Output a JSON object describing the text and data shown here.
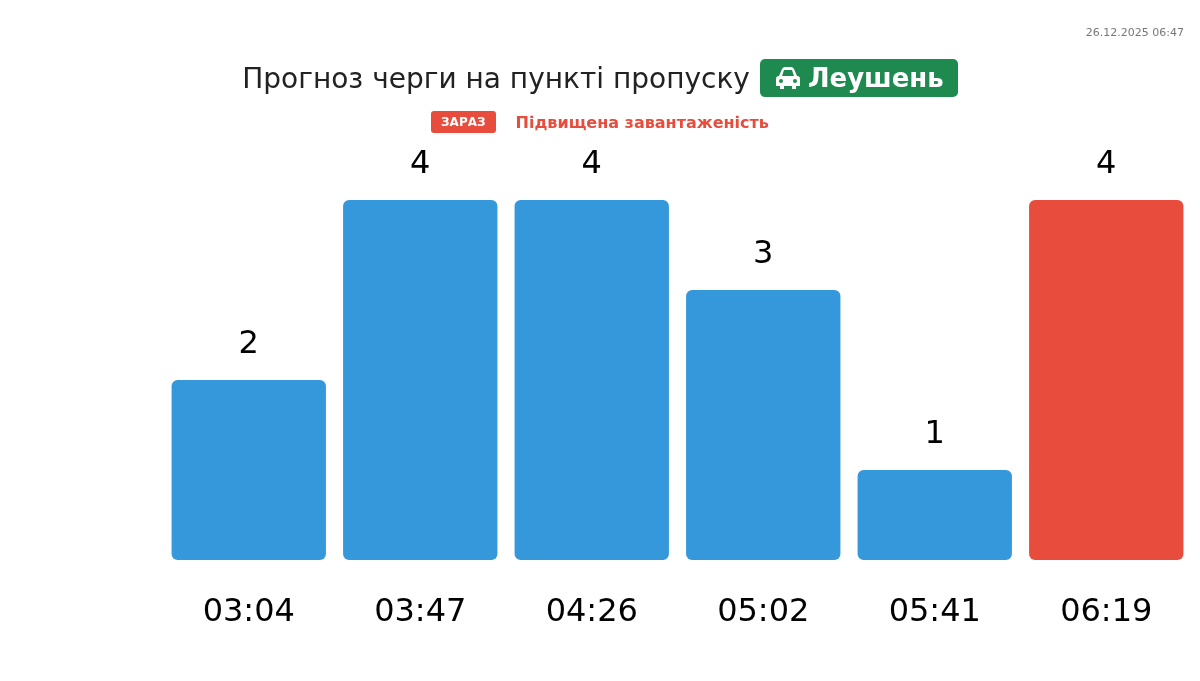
{
  "chart_data": {
    "type": "bar",
    "title": "Прогноз черги на пункті пропуску",
    "subtitle": "Підвищена завантаженість",
    "annotations": [
      "Леушень",
      "ЗАРАЗ",
      "26.12.2025 06:47"
    ],
    "categories": [
      "03:04",
      "03:47",
      "04:26",
      "05:02",
      "05:41",
      "06:19"
    ],
    "values": [
      2,
      4,
      4,
      3,
      1,
      4
    ],
    "colors": [
      "#3498db",
      "#3498db",
      "#3498db",
      "#3498db",
      "#3498db",
      "#e74c3c"
    ],
    "data_labels": true
  }
}
